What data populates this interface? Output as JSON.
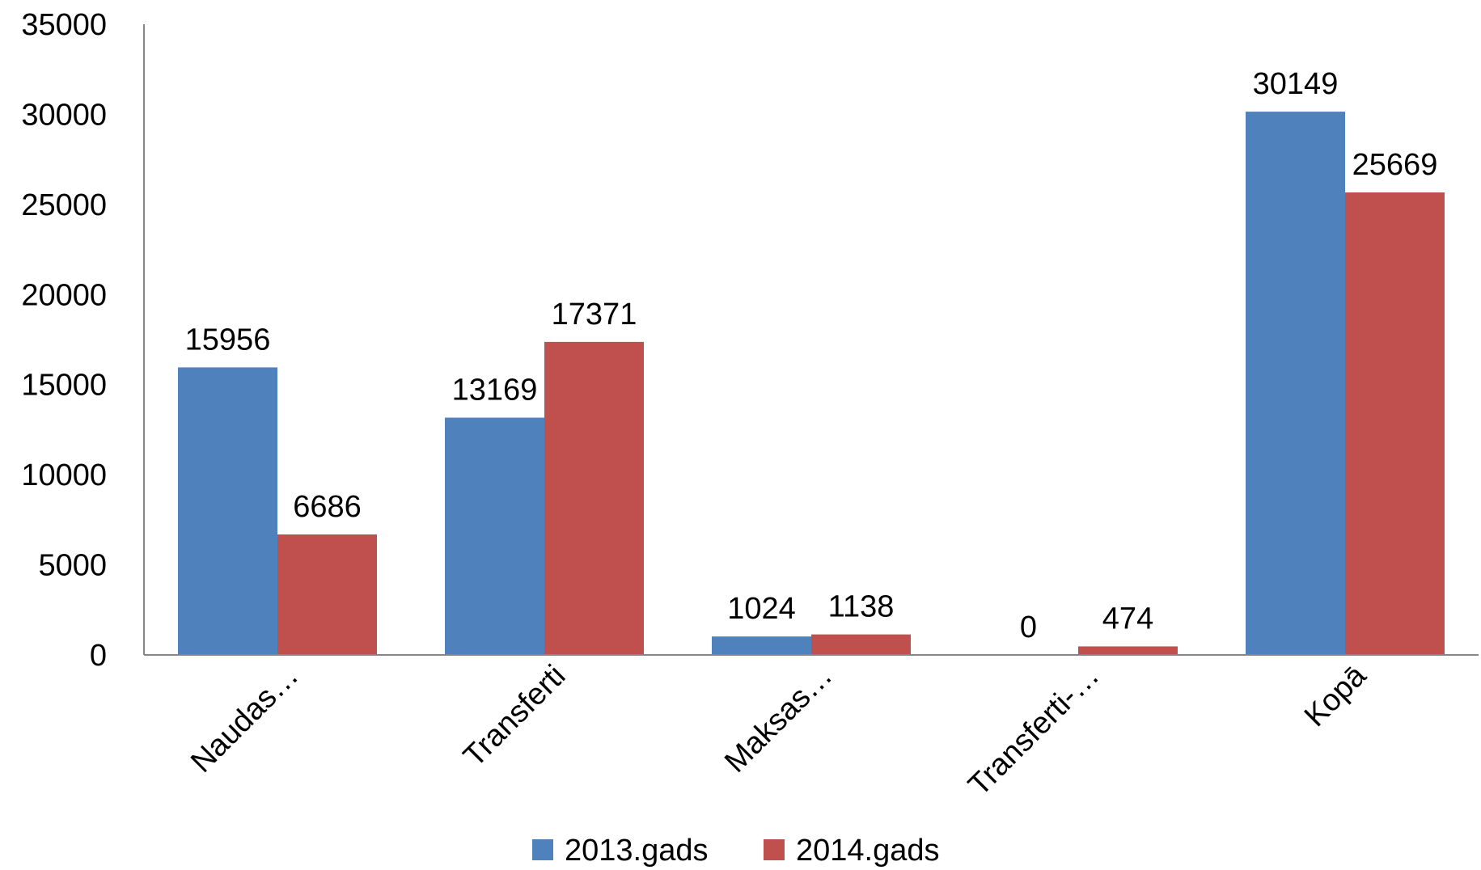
{
  "chart_data": {
    "type": "bar",
    "categories": [
      "Naudas…",
      "Transferti",
      "Maksas…",
      "Transferti-…",
      "Kopā"
    ],
    "series": [
      {
        "name": "2013.gads",
        "values": [
          15956,
          13169,
          1024,
          0,
          30149
        ],
        "color": "#4f81bd"
      },
      {
        "name": "2014.gads",
        "values": [
          6686,
          17371,
          1138,
          474,
          25669
        ],
        "color": "#c0504d"
      }
    ],
    "ylim": [
      0,
      35000
    ],
    "yticks": [
      "0",
      "5000",
      "10000",
      "15000",
      "20000",
      "25000",
      "30000",
      "35000"
    ],
    "grid": false,
    "legend_position": "bottom",
    "data_labels": true
  }
}
